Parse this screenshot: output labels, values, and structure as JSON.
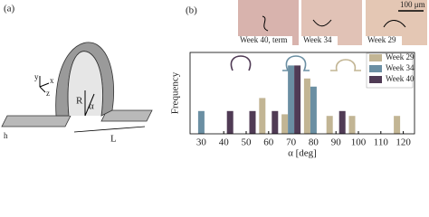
{
  "panel_a": {
    "label": "(a)",
    "axis_y": "y",
    "axis_x": "x",
    "axis_z": "z",
    "radius": "R",
    "angle": "α",
    "thickness": "h",
    "length": "L"
  },
  "panel_b": {
    "label": "(b)",
    "scale_bar": "100 μm",
    "images": [
      {
        "caption": "Week 40, term"
      },
      {
        "caption": "Week 34"
      },
      {
        "caption": "Week 29"
      }
    ]
  },
  "chart_data": {
    "type": "bar",
    "x_label": "α [deg]",
    "y_label": "Frequency",
    "categories": [
      30,
      40,
      50,
      60,
      70,
      80,
      90,
      100,
      110,
      120
    ],
    "series": [
      {
        "name": "Week 29",
        "color": "#c2b594",
        "values": [
          0,
          0,
          0,
          0.22,
          0.12,
          0.34,
          0.11,
          0.11,
          0,
          0.11
        ]
      },
      {
        "name": "Week 34",
        "color": "#6b8fa3",
        "values": [
          0.14,
          0,
          0,
          0,
          0.42,
          0.29,
          0,
          0,
          0,
          0
        ]
      },
      {
        "name": "Week 40",
        "color": "#503b55",
        "values": [
          0,
          0.14,
          0.14,
          0.14,
          0.42,
          0,
          0.14,
          0,
          0,
          0
        ]
      }
    ],
    "ylim": [
      0,
      0.5
    ],
    "legend": "upper right"
  }
}
